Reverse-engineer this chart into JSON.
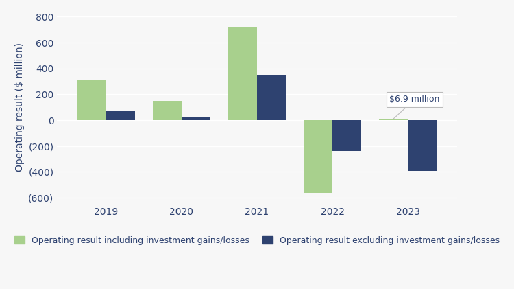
{
  "years": [
    "2019",
    "2020",
    "2021",
    "2022",
    "2023"
  ],
  "including": [
    310,
    148,
    725,
    -560,
    6.9
  ],
  "excluding": [
    68,
    20,
    350,
    -240,
    -390
  ],
  "color_including": "#a8d08d",
  "color_excluding": "#2e4270",
  "ylabel": "Operating result ($ million)",
  "ylim": [
    -650,
    850
  ],
  "yticks": [
    -600,
    -400,
    -200,
    0,
    200,
    400,
    600,
    800
  ],
  "ytick_labels": [
    "(600)",
    "(400)",
    "(200)",
    "0",
    "200",
    "400",
    "600",
    "800"
  ],
  "legend_including": "Operating result including investment gains/losses",
  "legend_excluding": "Operating result excluding investment gains/losses",
  "annotation_text": "$6.9 million",
  "annotation_year_index": 4,
  "bar_width": 0.38,
  "background_color": "#f7f7f7",
  "grid_color": "#ffffff",
  "axis_color": "#2e4270",
  "tick_fontsize": 10,
  "ylabel_fontsize": 10,
  "legend_fontsize": 9
}
